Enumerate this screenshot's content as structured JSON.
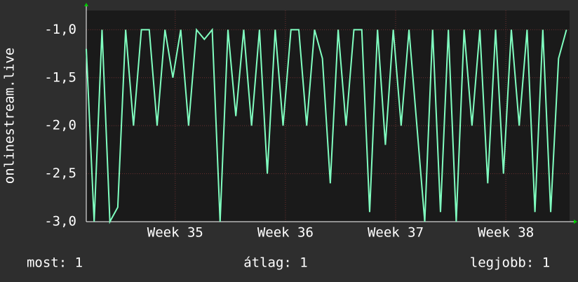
{
  "chart_data": {
    "type": "line",
    "y_label": "onlinestream.live",
    "x": [
      0,
      0.5,
      1,
      1.5,
      2,
      2.5,
      3,
      3.5,
      4,
      4.5,
      5,
      5.5,
      6,
      6.5,
      7,
      7.5,
      8,
      8.5,
      9,
      9.5,
      10,
      10.5,
      11,
      11.5,
      12,
      12.5,
      13,
      13.5,
      14,
      14.5,
      15,
      15.5,
      16,
      16.5,
      17,
      17.5,
      18,
      18.5,
      19,
      19.5,
      20,
      20.5,
      21,
      21.5,
      22,
      22.5,
      23,
      23.5,
      24,
      24.5,
      25,
      25.5,
      26,
      26.5,
      27,
      27.5,
      28,
      28.5,
      29,
      29.5,
      30,
      30.5
    ],
    "series": [
      {
        "name": "onlinestream.live",
        "color": "#80ffc0",
        "values": [
          -1.2,
          -3.0,
          -1.0,
          -3.0,
          -2.85,
          -1.0,
          -2.0,
          -1.0,
          -1.0,
          -2.0,
          -1.0,
          -1.5,
          -1.0,
          -2.0,
          -1.0,
          -1.1,
          -1.0,
          -3.0,
          -1.0,
          -1.9,
          -1.0,
          -2.0,
          -1.0,
          -2.5,
          -1.0,
          -2.0,
          -1.0,
          -1.0,
          -2.0,
          -1.0,
          -1.3,
          -2.6,
          -1.0,
          -2.0,
          -1.0,
          -1.0,
          -2.9,
          -1.0,
          -2.2,
          -1.0,
          -2.0,
          -1.0,
          -2.0,
          -3.0,
          -1.0,
          -2.9,
          -1.0,
          -3.0,
          -1.0,
          -2.0,
          -1.0,
          -2.6,
          -1.0,
          -2.5,
          -1.0,
          -2.0,
          -1.0,
          -2.9,
          -1.0,
          -2.9,
          -1.3,
          -1.0
        ]
      }
    ],
    "xlim": [
      0,
      30.7
    ],
    "xticks": [
      {
        "value": 5.65,
        "label": "Week 35"
      },
      {
        "value": 12.65,
        "label": "Week 36"
      },
      {
        "value": 19.65,
        "label": "Week 37"
      },
      {
        "value": 26.65,
        "label": "Week 38"
      }
    ],
    "ylim": [
      -3.0,
      -0.8
    ],
    "yticks": [
      {
        "value": -3.0,
        "label": "-3,0"
      },
      {
        "value": -2.5,
        "label": "-2,5"
      },
      {
        "value": -2.0,
        "label": "-2,0"
      },
      {
        "value": -1.5,
        "label": "-1,5"
      },
      {
        "value": -1.0,
        "label": "-1,0"
      }
    ],
    "grid": true,
    "stats": [
      "most: 1",
      "átlag: 1",
      "legjobb: 1"
    ]
  }
}
